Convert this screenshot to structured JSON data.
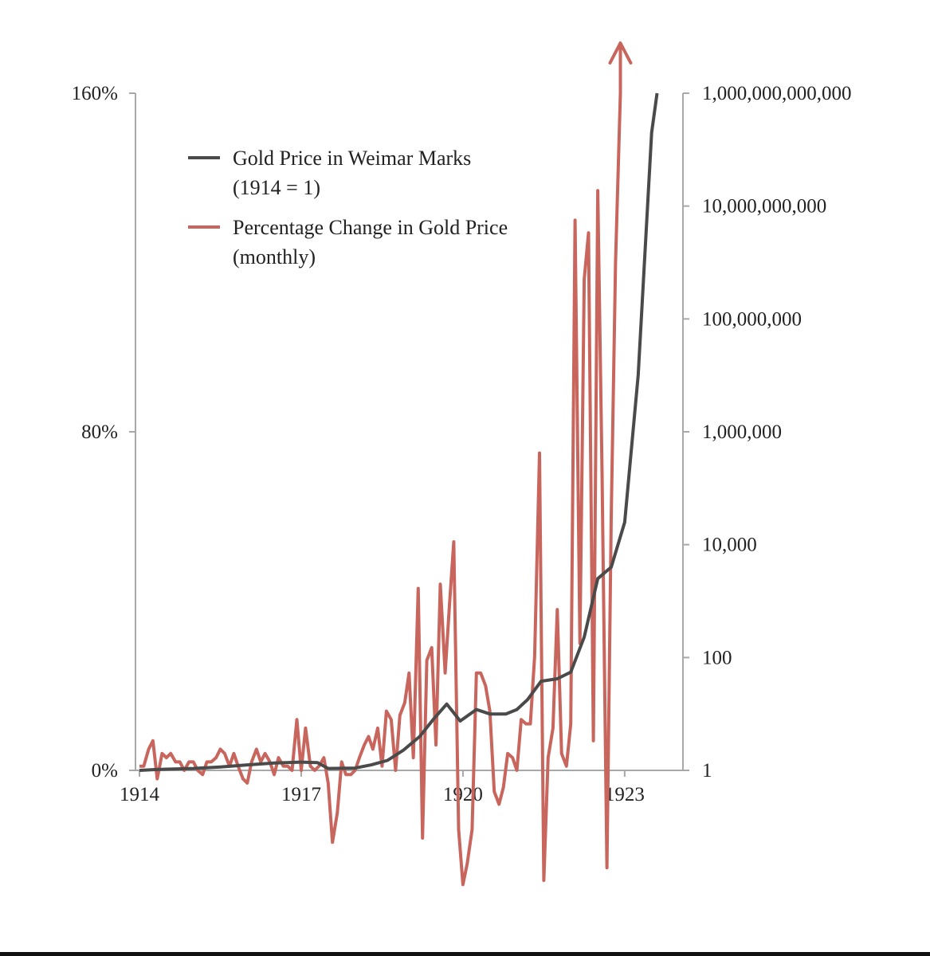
{
  "chart_data": {
    "type": "line",
    "x_start": 1914,
    "x_end": 1923.8,
    "x_ticks": [
      {
        "value": 1914,
        "label": "1914"
      },
      {
        "value": 1917,
        "label": "1917"
      },
      {
        "value": 1920,
        "label": "1920"
      },
      {
        "value": 1923,
        "label": "1923"
      }
    ],
    "y_left": {
      "ylim": [
        0,
        160
      ],
      "ticks": [
        {
          "value": 0,
          "label": "0%"
        },
        {
          "value": 80,
          "label": "80%"
        },
        {
          "value": 160,
          "label": "160%"
        }
      ]
    },
    "y_right": {
      "scale": "log",
      "ylim": [
        1,
        1000000000000
      ],
      "ticks": [
        {
          "value": 1,
          "label": "1"
        },
        {
          "value": 100,
          "label": "100"
        },
        {
          "value": 10000,
          "label": "10,000"
        },
        {
          "value": 1000000,
          "label": "1,000,000"
        },
        {
          "value": 100000000,
          "label": "100,000,000"
        },
        {
          "value": 10000000000,
          "label": "10,000,000,000"
        },
        {
          "value": 1000000000000,
          "label": "1,000,000,000,000"
        }
      ]
    },
    "legend": {
      "placement": "top-left",
      "items": [
        {
          "line1": "Gold Price in Weimar Marks",
          "line2": "(1914 = 1)",
          "color": "#4a4a4a"
        },
        {
          "line1": "Percentage Change in Gold Price",
          "line2": "(monthly)",
          "color": "#c8665e"
        }
      ]
    },
    "series": [
      {
        "color": "#4a4a4a",
        "axis": "right",
        "points": [
          [
            1914.0,
            1
          ],
          [
            1914.25,
            1.03
          ],
          [
            1914.5,
            1.05
          ],
          [
            1915.0,
            1.08
          ],
          [
            1915.5,
            1.15
          ],
          [
            1916.0,
            1.25
          ],
          [
            1916.5,
            1.35
          ],
          [
            1917.0,
            1.4
          ],
          [
            1917.3,
            1.37
          ],
          [
            1917.5,
            1.08
          ],
          [
            1918.0,
            1.1
          ],
          [
            1918.3,
            1.25
          ],
          [
            1918.6,
            1.5
          ],
          [
            1918.9,
            2.3
          ],
          [
            1919.2,
            4
          ],
          [
            1919.45,
            8
          ],
          [
            1919.7,
            15
          ],
          [
            1919.95,
            7.5
          ],
          [
            1920.25,
            12
          ],
          [
            1920.5,
            10
          ],
          [
            1920.8,
            10
          ],
          [
            1921.0,
            12
          ],
          [
            1921.2,
            18
          ],
          [
            1921.45,
            38
          ],
          [
            1921.75,
            42
          ],
          [
            1922.0,
            55
          ],
          [
            1922.25,
            230
          ],
          [
            1922.5,
            2500
          ],
          [
            1922.75,
            4000
          ],
          [
            1923.0,
            25000
          ],
          [
            1923.25,
            10000000
          ],
          [
            1923.5,
            200000000000
          ],
          [
            1923.6,
            1000000000000
          ]
        ]
      },
      {
        "color": "#c8665e",
        "axis": "left",
        "points": [
          [
            1914.0,
            1
          ],
          [
            1914.08,
            1
          ],
          [
            1914.17,
            5
          ],
          [
            1914.25,
            7
          ],
          [
            1914.33,
            -2
          ],
          [
            1914.42,
            4
          ],
          [
            1914.5,
            3
          ],
          [
            1914.58,
            4
          ],
          [
            1914.67,
            2
          ],
          [
            1914.75,
            2
          ],
          [
            1914.83,
            0
          ],
          [
            1914.92,
            2
          ],
          [
            1915.0,
            2
          ],
          [
            1915.08,
            0
          ],
          [
            1915.17,
            -1
          ],
          [
            1915.25,
            2
          ],
          [
            1915.33,
            2
          ],
          [
            1915.42,
            3
          ],
          [
            1915.5,
            5
          ],
          [
            1915.58,
            4
          ],
          [
            1915.67,
            1
          ],
          [
            1915.75,
            4
          ],
          [
            1915.83,
            1
          ],
          [
            1915.92,
            -2
          ],
          [
            1916.0,
            -3
          ],
          [
            1916.08,
            2
          ],
          [
            1916.17,
            5
          ],
          [
            1916.25,
            2
          ],
          [
            1916.33,
            4
          ],
          [
            1916.42,
            2
          ],
          [
            1916.5,
            -1
          ],
          [
            1916.58,
            3
          ],
          [
            1916.67,
            1
          ],
          [
            1916.75,
            1
          ],
          [
            1916.83,
            0
          ],
          [
            1916.92,
            12
          ],
          [
            1917.0,
            0
          ],
          [
            1917.08,
            10
          ],
          [
            1917.17,
            1
          ],
          [
            1917.25,
            0
          ],
          [
            1917.33,
            1
          ],
          [
            1917.42,
            3
          ],
          [
            1917.5,
            -3
          ],
          [
            1917.58,
            -17
          ],
          [
            1917.67,
            -10
          ],
          [
            1917.75,
            2
          ],
          [
            1917.83,
            -1
          ],
          [
            1917.92,
            -1
          ],
          [
            1918.0,
            0
          ],
          [
            1918.08,
            3
          ],
          [
            1918.17,
            6
          ],
          [
            1918.25,
            8
          ],
          [
            1918.33,
            5
          ],
          [
            1918.42,
            10
          ],
          [
            1918.5,
            1
          ],
          [
            1918.58,
            14
          ],
          [
            1918.67,
            12
          ],
          [
            1918.75,
            0
          ],
          [
            1918.83,
            13
          ],
          [
            1918.92,
            16
          ],
          [
            1919.0,
            23
          ],
          [
            1919.08,
            3
          ],
          [
            1919.17,
            43
          ],
          [
            1919.25,
            -16
          ],
          [
            1919.33,
            26
          ],
          [
            1919.42,
            29
          ],
          [
            1919.5,
            6
          ],
          [
            1919.58,
            44
          ],
          [
            1919.67,
            23
          ],
          [
            1919.75,
            39
          ],
          [
            1919.83,
            54
          ],
          [
            1919.92,
            -14
          ],
          [
            1920.0,
            -27
          ],
          [
            1920.08,
            -22
          ],
          [
            1920.17,
            -14
          ],
          [
            1920.25,
            23
          ],
          [
            1920.33,
            23
          ],
          [
            1920.42,
            20
          ],
          [
            1920.5,
            14
          ],
          [
            1920.58,
            -5
          ],
          [
            1920.67,
            -8
          ],
          [
            1920.75,
            -4
          ],
          [
            1920.83,
            4
          ],
          [
            1920.92,
            3
          ],
          [
            1921.0,
            0
          ],
          [
            1921.08,
            12
          ],
          [
            1921.17,
            11
          ],
          [
            1921.25,
            11
          ],
          [
            1921.33,
            27
          ],
          [
            1921.42,
            75
          ],
          [
            1921.5,
            -26
          ],
          [
            1921.58,
            3
          ],
          [
            1921.67,
            10
          ],
          [
            1921.75,
            38
          ],
          [
            1921.83,
            4
          ],
          [
            1921.92,
            1
          ],
          [
            1922.0,
            11
          ],
          [
            1922.08,
            130
          ],
          [
            1922.17,
            30
          ],
          [
            1922.25,
            116
          ],
          [
            1922.33,
            127
          ],
          [
            1922.42,
            7
          ],
          [
            1922.5,
            137
          ],
          [
            1922.58,
            70
          ],
          [
            1922.67,
            -23
          ],
          [
            1922.75,
            60
          ],
          [
            1922.83,
            120
          ],
          [
            1922.92,
            160
          ]
        ]
      }
    ],
    "arrow_at_x": 1922.92
  }
}
